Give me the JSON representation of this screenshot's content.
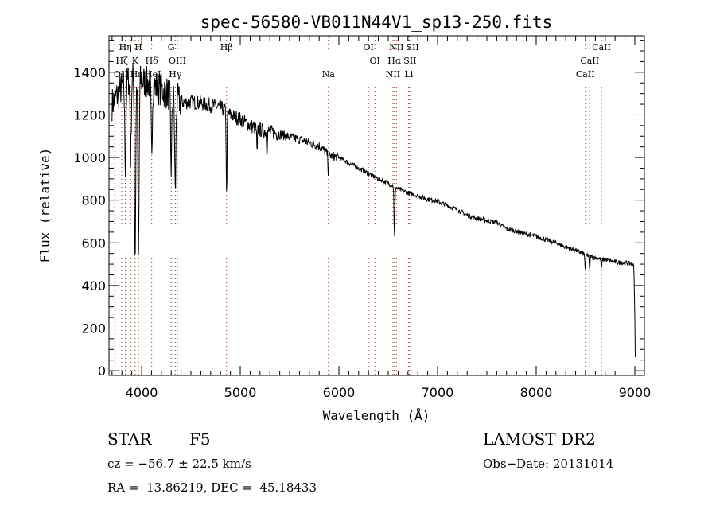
{
  "chart_data": {
    "type": "line",
    "title": "spec-56580-VB011N44V1_sp13-250.fits",
    "xlabel": "Wavelength (Å)",
    "ylabel": "Flux (relative)",
    "xlim": [
      3669,
      9097
    ],
    "ylim": [
      -22,
      1571
    ],
    "x_ticks": [
      4000,
      5000,
      6000,
      7000,
      8000,
      9000
    ],
    "x_tick_labels": [
      "4000",
      "5000",
      "6000",
      "7000",
      "8000",
      "9000"
    ],
    "y_ticks": [
      0,
      200,
      400,
      600,
      800,
      1000,
      1200,
      1400
    ],
    "y_tick_labels": [
      "0",
      "200",
      "400",
      "600",
      "800",
      "1000",
      "1200",
      "1400"
    ],
    "grid": false,
    "series": [
      {
        "name": "spectrum",
        "continuum": [
          [
            3700,
            1250
          ],
          [
            3800,
            1330
          ],
          [
            3900,
            1380
          ],
          [
            4000,
            1360
          ],
          [
            4100,
            1340
          ],
          [
            4200,
            1320
          ],
          [
            4300,
            1290
          ],
          [
            4400,
            1260
          ],
          [
            4500,
            1260
          ],
          [
            4600,
            1255
          ],
          [
            4700,
            1245
          ],
          [
            4800,
            1235
          ],
          [
            4900,
            1200
          ],
          [
            5000,
            1180
          ],
          [
            5100,
            1150
          ],
          [
            5200,
            1130
          ],
          [
            5300,
            1120
          ],
          [
            5400,
            1110
          ],
          [
            5500,
            1095
          ],
          [
            5600,
            1085
          ],
          [
            5700,
            1070
          ],
          [
            5800,
            1055
          ],
          [
            5900,
            1010
          ],
          [
            6000,
            1000
          ],
          [
            6100,
            975
          ],
          [
            6200,
            950
          ],
          [
            6300,
            925
          ],
          [
            6400,
            900
          ],
          [
            6500,
            880
          ],
          [
            6600,
            852
          ],
          [
            6700,
            835
          ],
          [
            6800,
            820
          ],
          [
            6900,
            805
          ],
          [
            7000,
            795
          ],
          [
            7100,
            775
          ],
          [
            7200,
            755
          ],
          [
            7300,
            730
          ],
          [
            7400,
            715
          ],
          [
            7500,
            705
          ],
          [
            7600,
            695
          ],
          [
            7700,
            665
          ],
          [
            7800,
            655
          ],
          [
            7900,
            640
          ],
          [
            8000,
            630
          ],
          [
            8100,
            615
          ],
          [
            8200,
            600
          ],
          [
            8300,
            580
          ],
          [
            8400,
            565
          ],
          [
            8500,
            545
          ],
          [
            8600,
            530
          ],
          [
            8700,
            520
          ],
          [
            8800,
            510
          ],
          [
            8900,
            505
          ],
          [
            8990,
            500
          ],
          [
            9000,
            240
          ],
          [
            9005,
            20
          ]
        ],
        "absorption_lines": [
          [
            3835,
            960
          ],
          [
            3889,
            1000
          ],
          [
            3934,
            520
          ],
          [
            3968,
            520
          ],
          [
            4102,
            1040
          ],
          [
            4300,
            950
          ],
          [
            4341,
            830
          ],
          [
            4861,
            810
          ],
          [
            5170,
            1010
          ],
          [
            5270,
            1040
          ],
          [
            5893,
            930
          ],
          [
            6563,
            620
          ],
          [
            8498,
            470
          ],
          [
            8542,
            470
          ],
          [
            8662,
            475
          ]
        ]
      }
    ],
    "line_markers": [
      3727,
      3798,
      3835,
      3889,
      3934,
      3968,
      4102,
      4300,
      4341,
      4363,
      4861,
      5893,
      6300,
      6364,
      6548,
      6563,
      6583,
      6708,
      6716,
      6731,
      8498,
      8542,
      8662
    ],
    "line_labels_row1": [
      [
        "Hη",
        3835
      ],
      [
        "H",
        3968
      ],
      [
        "G",
        4300
      ],
      [
        "Hβ",
        4861
      ],
      [
        "OI",
        6300
      ],
      [
        "NII",
        6583
      ],
      [
        "SII",
        6731
      ],
      [
        "CaII",
        8662
      ]
    ],
    "line_labels_row2": [
      [
        "Hζ",
        3800
      ],
      [
        "K",
        3934
      ],
      [
        "Hδ",
        4102
      ],
      [
        "OIII",
        4363
      ],
      [
        "OI",
        6364
      ],
      [
        "Hα",
        6563
      ],
      [
        "SII",
        6716
      ],
      [
        "CaII",
        8542
      ]
    ],
    "line_labels_row3": [
      [
        "OII",
        3727
      ],
      [
        "Hε",
        3889
      ],
      [
        "HeI",
        3968
      ],
      [
        "Hγ",
        4341
      ],
      [
        "Na",
        5893
      ],
      [
        "NII",
        6548
      ],
      [
        "Li",
        6708
      ],
      [
        "CaII",
        8498
      ]
    ],
    "colors": {
      "spectrum": "#000000",
      "markers": "#a03020"
    }
  },
  "info": {
    "object_class": "STAR",
    "subclass": "F5",
    "survey": "LAMOST DR2",
    "cz": "cz = −56.7 ± 22.5 km/s",
    "obs_date": "Obs−Date: 20131014",
    "coords": "RA =  13.86219, DEC =  45.18433"
  }
}
